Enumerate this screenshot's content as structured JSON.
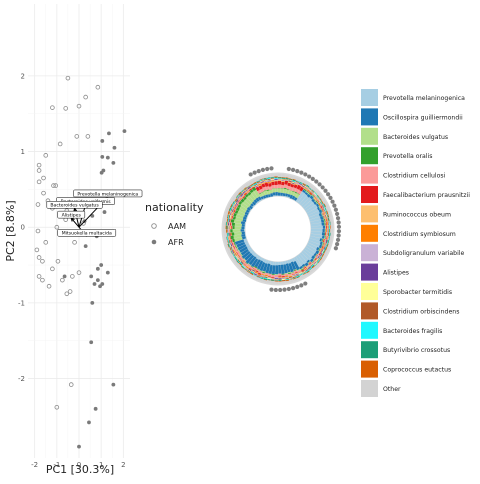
{
  "chart_data": [
    {
      "type": "scatter",
      "xlabel": "PC1 [30.3%]",
      "ylabel": "PC2 [8.8%]",
      "xlim": [
        -2.3,
        2.3
      ],
      "ylim": [
        -3.05,
        2.95
      ],
      "x_ticks": [
        -2,
        -1,
        0,
        1,
        2
      ],
      "y_ticks": [
        -2,
        -1,
        0,
        1,
        2
      ],
      "grid": true,
      "legend_title": "nationality",
      "legend_position": "right",
      "series": [
        {
          "name": "AAM",
          "marker": "open-circle",
          "color": "#8c8c8c",
          "points": [
            [
              -0.5,
              1.97
            ],
            [
              0.85,
              1.85
            ],
            [
              0.3,
              1.72
            ],
            [
              0.0,
              1.6
            ],
            [
              -1.2,
              1.58
            ],
            [
              -0.6,
              1.57
            ],
            [
              0.4,
              1.2
            ],
            [
              -0.1,
              1.2
            ],
            [
              -0.85,
              1.1
            ],
            [
              -1.5,
              0.95
            ],
            [
              -1.8,
              0.82
            ],
            [
              -1.8,
              0.75
            ],
            [
              -1.6,
              0.65
            ],
            [
              -1.8,
              0.6
            ],
            [
              -1.05,
              0.55
            ],
            [
              -1.15,
              0.55
            ],
            [
              -1.6,
              0.45
            ],
            [
              -1.4,
              0.35
            ],
            [
              -1.85,
              0.3
            ],
            [
              -1.2,
              0.25
            ],
            [
              -0.55,
              0.22
            ],
            [
              -1.0,
              0.0
            ],
            [
              -1.85,
              -0.05
            ],
            [
              -1.5,
              -0.2
            ],
            [
              -1.9,
              -0.3
            ],
            [
              -1.8,
              -0.4
            ],
            [
              -1.65,
              -0.45
            ],
            [
              -0.95,
              -0.45
            ],
            [
              -1.2,
              -0.55
            ],
            [
              -1.8,
              -0.65
            ],
            [
              -1.65,
              -0.7
            ],
            [
              -0.75,
              -0.7
            ],
            [
              -1.35,
              -0.78
            ],
            [
              -0.4,
              -0.85
            ],
            [
              -0.55,
              -0.88
            ],
            [
              -0.35,
              -2.08
            ],
            [
              -1.0,
              -2.38
            ],
            [
              0.0,
              -0.6
            ],
            [
              -0.3,
              -0.65
            ],
            [
              0.2,
              0.05
            ],
            [
              -0.6,
              0.1
            ],
            [
              -0.2,
              -0.2
            ]
          ]
        },
        {
          "name": "AFR",
          "marker": "filled-circle",
          "color": "#7a7a7a",
          "points": [
            [
              2.05,
              1.27
            ],
            [
              1.35,
              1.24
            ],
            [
              1.05,
              1.14
            ],
            [
              1.6,
              1.05
            ],
            [
              1.05,
              0.93
            ],
            [
              1.3,
              0.92
            ],
            [
              1.55,
              0.85
            ],
            [
              1.1,
              0.75
            ],
            [
              1.02,
              0.72
            ],
            [
              -0.65,
              -0.65
            ],
            [
              0.55,
              -0.65
            ],
            [
              1.3,
              -0.6
            ],
            [
              1.0,
              -0.5
            ],
            [
              0.85,
              -0.7
            ],
            [
              0.7,
              -0.75
            ],
            [
              0.95,
              -0.78
            ],
            [
              1.05,
              -0.75
            ],
            [
              0.6,
              -1.0
            ],
            [
              0.55,
              -1.52
            ],
            [
              1.55,
              -2.08
            ],
            [
              0.75,
              -2.4
            ],
            [
              0.45,
              -2.58
            ],
            [
              0.0,
              -2.9
            ],
            [
              0.85,
              -0.55
            ],
            [
              0.25,
              0.08
            ],
            [
              0.6,
              0.15
            ],
            [
              1.15,
              0.2
            ],
            [
              0.8,
              -0.12
            ],
            [
              0.3,
              -0.25
            ]
          ]
        }
      ],
      "biplot_arrows": [
        {
          "label": "Prevotella melaninogenica",
          "x": 1.3,
          "y": 0.4
        },
        {
          "label": "Bacteroides uniformis",
          "x": 0.3,
          "y": 0.3
        },
        {
          "label": "Bacteroides vulgatus",
          "x": -0.2,
          "y": 0.25
        },
        {
          "label": "Alistipes",
          "x": -0.35,
          "y": 0.12
        },
        {
          "label": "Mitsuokella multacida",
          "x": 0.35,
          "y": -0.12
        }
      ]
    },
    {
      "type": "circular-stacked-bar",
      "legend_position": "right",
      "categories": [
        {
          "name": "Prevotella melaninogenica",
          "color": "#a6cee3"
        },
        {
          "name": "Oscillospira guilliermondii",
          "color": "#1f78b4"
        },
        {
          "name": "Bacteroides vulgatus",
          "color": "#b2df8a"
        },
        {
          "name": "Prevotella oralis",
          "color": "#33a02c"
        },
        {
          "name": "Clostridium cellulosi",
          "color": "#fb9a99"
        },
        {
          "name": "Faecalibacterium prausnitzii",
          "color": "#e31a1c"
        },
        {
          "name": "Ruminococcus obeum",
          "color": "#fdbf6f"
        },
        {
          "name": "Clostridium symbiosum",
          "color": "#ff7f00"
        },
        {
          "name": "Subdoligranulum variabile",
          "color": "#cab2d6"
        },
        {
          "name": "Alistipes",
          "color": "#6a3d9a"
        },
        {
          "name": "Sporobacter termitidis",
          "color": "#ffff99"
        },
        {
          "name": "Clostridium orbiscindens",
          "color": "#b15928"
        },
        {
          "name": "Bacteroides fragilis",
          "color": "#1ff8ff"
        },
        {
          "name": "Butyrivibrio crossotus",
          "color": "#1b9e77"
        },
        {
          "name": "Coprococcus eutactus",
          "color": "#d95f02"
        },
        {
          "name": "Other",
          "color": "#d3d3d3"
        }
      ]
    }
  ],
  "ui": {
    "legend_title": "nationality",
    "aam_label": "AAM",
    "afr_label": "AFR"
  }
}
